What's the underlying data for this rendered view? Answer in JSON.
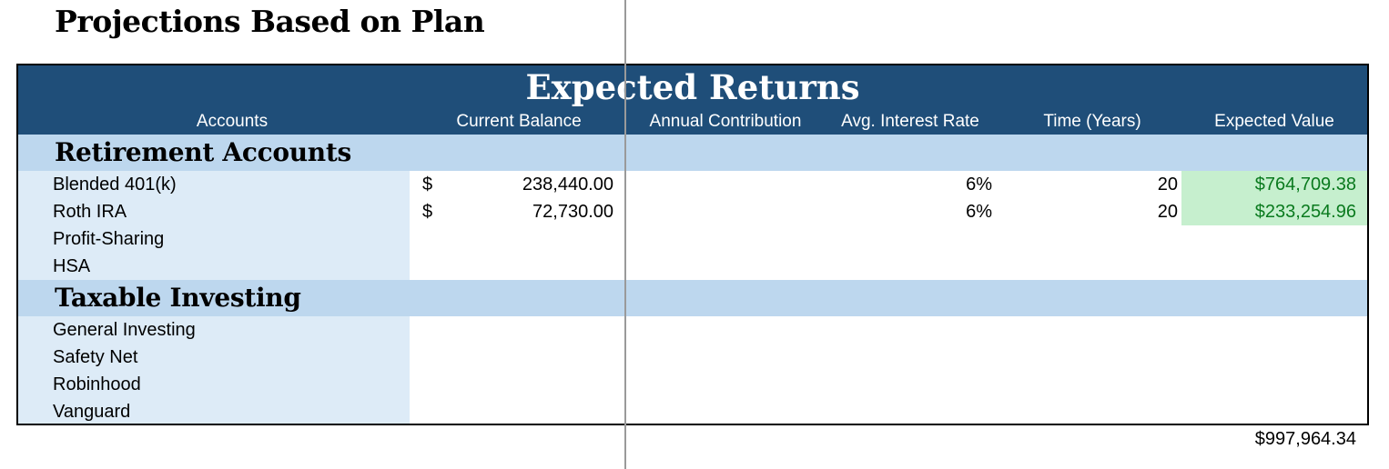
{
  "page_title": "Projections Based on Plan",
  "table": {
    "title": "Expected Returns",
    "columns": [
      "Accounts",
      "Current Balance",
      "Annual Contribution",
      "Avg. Interest Rate",
      "Time (Years)",
      "Expected Value"
    ],
    "sections": [
      {
        "label": "Retirement Accounts",
        "rows": [
          {
            "name": "Blended 401(k)",
            "currency": "$",
            "balance": "238,440.00",
            "contribution": "",
            "rate": "6%",
            "years": "20",
            "expected": "$764,709.38"
          },
          {
            "name": "Roth IRA",
            "currency": "$",
            "balance": "72,730.00",
            "contribution": "",
            "rate": "6%",
            "years": "20",
            "expected": "$233,254.96"
          },
          {
            "name": "Profit-Sharing",
            "currency": "",
            "balance": "",
            "contribution": "",
            "rate": "",
            "years": "",
            "expected": ""
          },
          {
            "name": "HSA",
            "currency": "",
            "balance": "",
            "contribution": "",
            "rate": "",
            "years": "",
            "expected": ""
          }
        ]
      },
      {
        "label": "Taxable Investing",
        "rows": [
          {
            "name": "General Investing"
          },
          {
            "name": "Safety Net"
          },
          {
            "name": "Robinhood"
          },
          {
            "name": "Vanguard"
          }
        ]
      }
    ],
    "total": "$997,964.34"
  },
  "colors": {
    "header": "#1f4e79",
    "section": "#bdd7ee",
    "account_column": "#ddebf7",
    "expected_fill": "#c6efce",
    "expected_text": "#0a7a1e"
  }
}
